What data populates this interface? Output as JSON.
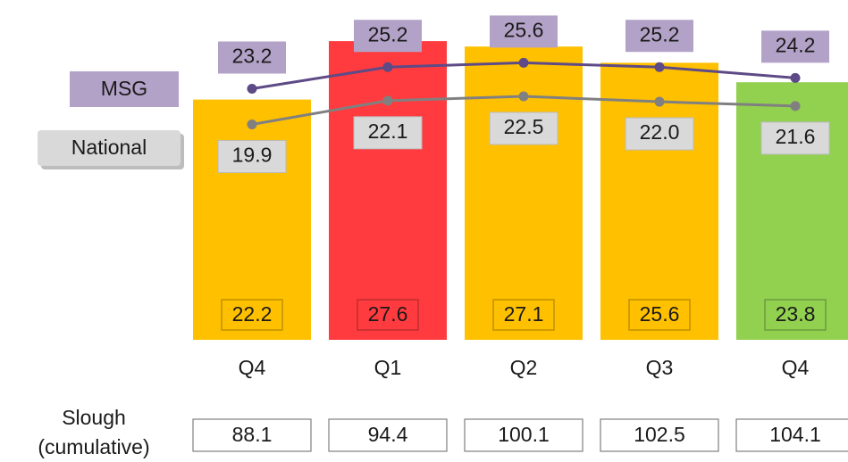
{
  "chart_data": {
    "type": "bar",
    "categories": [
      "Q4",
      "Q1",
      "Q2",
      "Q3",
      "Q4"
    ],
    "values": [
      22.2,
      27.6,
      27.1,
      25.6,
      23.8
    ],
    "colors": [
      "#ffc000",
      "#ff3b3f",
      "#ffc000",
      "#ffc000",
      "#92d050"
    ],
    "ylim": [
      0,
      31.4
    ],
    "lines": [
      {
        "name": "MSG",
        "color": "#5e4a86",
        "label_color": "#b3a2c7",
        "values": [
          23.2,
          25.2,
          25.6,
          25.2,
          24.2
        ]
      },
      {
        "name": "National",
        "color": "#808080",
        "label_color": "#d9d9d9",
        "values": [
          19.9,
          22.1,
          22.5,
          22.0,
          21.6
        ]
      }
    ],
    "table": {
      "label": "Slough (cumulative)",
      "values": [
        88.1,
        94.4,
        100.1,
        102.5,
        104.1
      ]
    }
  }
}
